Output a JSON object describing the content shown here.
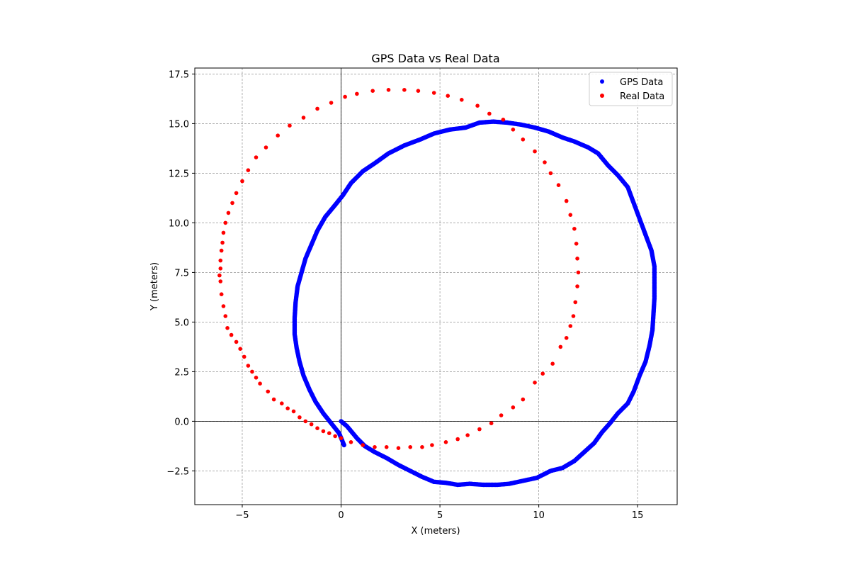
{
  "chart_data": {
    "type": "scatter",
    "title": "GPS Data vs Real Data",
    "xlabel": "X (meters)",
    "ylabel": "Y (meters)",
    "xlim": [
      -7.4,
      17.0
    ],
    "ylim": [
      -4.2,
      17.8
    ],
    "xticks": [
      -5,
      0,
      5,
      10,
      15
    ],
    "xtick_labels": [
      "−5",
      "0",
      "5",
      "10",
      "15"
    ],
    "yticks": [
      -2.5,
      0.0,
      2.5,
      5.0,
      7.5,
      10.0,
      12.5,
      15.0,
      17.5
    ],
    "ytick_labels": [
      "−2.5",
      "0.0",
      "2.5",
      "5.0",
      "7.5",
      "10.0",
      "12.5",
      "15.0",
      "17.5"
    ],
    "grid": true,
    "legend_position": "top-right",
    "reference_lines": {
      "x": 0,
      "y": 0
    },
    "series": [
      {
        "name": "GPS Data",
        "color": "#0000ff",
        "points": [
          [
            0.0,
            0.0
          ],
          [
            0.3,
            -0.25
          ],
          [
            0.55,
            -0.55
          ],
          [
            0.8,
            -0.85
          ],
          [
            1.2,
            -1.25
          ],
          [
            1.7,
            -1.55
          ],
          [
            2.3,
            -1.85
          ],
          [
            2.9,
            -2.2
          ],
          [
            3.5,
            -2.5
          ],
          [
            4.1,
            -2.8
          ],
          [
            4.7,
            -3.05
          ],
          [
            5.3,
            -3.1
          ],
          [
            5.9,
            -3.2
          ],
          [
            6.5,
            -3.15
          ],
          [
            7.2,
            -3.2
          ],
          [
            7.9,
            -3.2
          ],
          [
            8.5,
            -3.15
          ],
          [
            9.2,
            -3.0
          ],
          [
            9.9,
            -2.85
          ],
          [
            10.6,
            -2.5
          ],
          [
            11.2,
            -2.35
          ],
          [
            11.8,
            -2.0
          ],
          [
            12.3,
            -1.55
          ],
          [
            12.8,
            -1.1
          ],
          [
            13.2,
            -0.55
          ],
          [
            13.6,
            -0.1
          ],
          [
            14.0,
            0.4
          ],
          [
            14.5,
            0.9
          ],
          [
            14.8,
            1.5
          ],
          [
            15.1,
            2.3
          ],
          [
            15.4,
            3.0
          ],
          [
            15.6,
            3.8
          ],
          [
            15.75,
            4.6
          ],
          [
            15.8,
            5.4
          ],
          [
            15.85,
            6.2
          ],
          [
            15.85,
            7.0
          ],
          [
            15.85,
            7.8
          ],
          [
            15.7,
            8.6
          ],
          [
            15.4,
            9.4
          ],
          [
            15.1,
            10.2
          ],
          [
            14.8,
            11.0
          ],
          [
            14.5,
            11.8
          ],
          [
            14.0,
            12.4
          ],
          [
            13.5,
            12.9
          ],
          [
            13.0,
            13.5
          ],
          [
            12.5,
            13.8
          ],
          [
            11.8,
            14.1
          ],
          [
            11.2,
            14.3
          ],
          [
            10.5,
            14.6
          ],
          [
            9.8,
            14.8
          ],
          [
            9.1,
            14.95
          ],
          [
            8.4,
            15.05
          ],
          [
            7.7,
            15.1
          ],
          [
            7.0,
            15.05
          ],
          [
            6.3,
            14.8
          ],
          [
            5.5,
            14.7
          ],
          [
            4.7,
            14.5
          ],
          [
            4.0,
            14.2
          ],
          [
            3.2,
            13.9
          ],
          [
            2.4,
            13.5
          ],
          [
            1.7,
            13.0
          ],
          [
            1.1,
            12.6
          ],
          [
            0.5,
            12.0
          ],
          [
            0.1,
            11.4
          ],
          [
            -0.3,
            10.9
          ],
          [
            -0.8,
            10.3
          ],
          [
            -1.2,
            9.6
          ],
          [
            -1.5,
            8.9
          ],
          [
            -1.8,
            8.2
          ],
          [
            -2.0,
            7.5
          ],
          [
            -2.2,
            6.8
          ],
          [
            -2.3,
            6.0
          ],
          [
            -2.35,
            5.2
          ],
          [
            -2.35,
            4.4
          ],
          [
            -2.25,
            3.7
          ],
          [
            -2.1,
            3.0
          ],
          [
            -1.9,
            2.3
          ],
          [
            -1.6,
            1.6
          ],
          [
            -1.3,
            1.0
          ],
          [
            -0.9,
            0.4
          ],
          [
            -0.5,
            -0.1
          ],
          [
            -0.1,
            -0.6
          ],
          [
            0.15,
            -1.2
          ]
        ]
      },
      {
        "name": "Real Data",
        "color": "#ff0000",
        "points": [
          [
            0.0,
            -0.85
          ],
          [
            0.5,
            -1.05
          ],
          [
            1.1,
            -1.2
          ],
          [
            1.7,
            -1.3
          ],
          [
            2.3,
            -1.3
          ],
          [
            2.9,
            -1.35
          ],
          [
            3.5,
            -1.3
          ],
          [
            4.1,
            -1.3
          ],
          [
            4.6,
            -1.2
          ],
          [
            5.3,
            -1.05
          ],
          [
            5.9,
            -0.9
          ],
          [
            6.4,
            -0.7
          ],
          [
            7.0,
            -0.4
          ],
          [
            7.6,
            -0.1
          ],
          [
            8.1,
            0.3
          ],
          [
            8.7,
            0.7
          ],
          [
            9.2,
            1.1
          ],
          [
            9.8,
            1.95
          ],
          [
            10.2,
            2.4
          ],
          [
            10.7,
            2.9
          ],
          [
            11.1,
            3.75
          ],
          [
            11.4,
            4.2
          ],
          [
            11.6,
            4.8
          ],
          [
            11.75,
            5.3
          ],
          [
            11.85,
            6.0
          ],
          [
            11.95,
            6.8
          ],
          [
            12.0,
            7.5
          ],
          [
            11.95,
            8.2
          ],
          [
            11.9,
            8.95
          ],
          [
            11.8,
            9.7
          ],
          [
            11.6,
            10.4
          ],
          [
            11.4,
            11.1
          ],
          [
            11.0,
            11.9
          ],
          [
            10.6,
            12.5
          ],
          [
            10.3,
            13.05
          ],
          [
            9.8,
            13.6
          ],
          [
            9.2,
            14.2
          ],
          [
            8.7,
            14.7
          ],
          [
            8.2,
            15.2
          ],
          [
            7.5,
            15.5
          ],
          [
            6.9,
            15.9
          ],
          [
            6.1,
            16.2
          ],
          [
            5.4,
            16.4
          ],
          [
            4.7,
            16.55
          ],
          [
            3.9,
            16.65
          ],
          [
            3.2,
            16.7
          ],
          [
            2.4,
            16.7
          ],
          [
            1.6,
            16.65
          ],
          [
            0.8,
            16.5
          ],
          [
            0.2,
            16.35
          ],
          [
            -0.5,
            16.05
          ],
          [
            -1.2,
            15.75
          ],
          [
            -1.9,
            15.3
          ],
          [
            -2.6,
            14.9
          ],
          [
            -3.2,
            14.4
          ],
          [
            -3.8,
            13.8
          ],
          [
            -4.3,
            13.3
          ],
          [
            -4.7,
            12.65
          ],
          [
            -5.0,
            12.1
          ],
          [
            -5.3,
            11.5
          ],
          [
            -5.5,
            11.0
          ],
          [
            -5.7,
            10.5
          ],
          [
            -5.85,
            10.0
          ],
          [
            -5.95,
            9.5
          ],
          [
            -6.0,
            9.0
          ],
          [
            -6.05,
            8.6
          ],
          [
            -6.1,
            8.1
          ],
          [
            -6.1,
            7.7
          ],
          [
            -6.15,
            7.35
          ],
          [
            -6.1,
            7.05
          ],
          [
            -6.05,
            6.4
          ],
          [
            -5.95,
            5.8
          ],
          [
            -5.85,
            5.3
          ],
          [
            -5.75,
            4.7
          ],
          [
            -5.55,
            4.35
          ],
          [
            -5.3,
            4.0
          ],
          [
            -5.1,
            3.65
          ],
          [
            -4.9,
            3.25
          ],
          [
            -4.7,
            2.8
          ],
          [
            -4.5,
            2.5
          ],
          [
            -4.3,
            2.2
          ],
          [
            -4.1,
            1.9
          ],
          [
            -3.7,
            1.5
          ],
          [
            -3.4,
            1.1
          ],
          [
            -3.0,
            0.9
          ],
          [
            -2.7,
            0.65
          ],
          [
            -2.4,
            0.5
          ],
          [
            -2.1,
            0.2
          ],
          [
            -1.8,
            0.0
          ],
          [
            -1.5,
            -0.15
          ],
          [
            -1.2,
            -0.35
          ],
          [
            -0.9,
            -0.5
          ],
          [
            -0.6,
            -0.6
          ],
          [
            -0.3,
            -0.75
          ]
        ]
      }
    ]
  }
}
